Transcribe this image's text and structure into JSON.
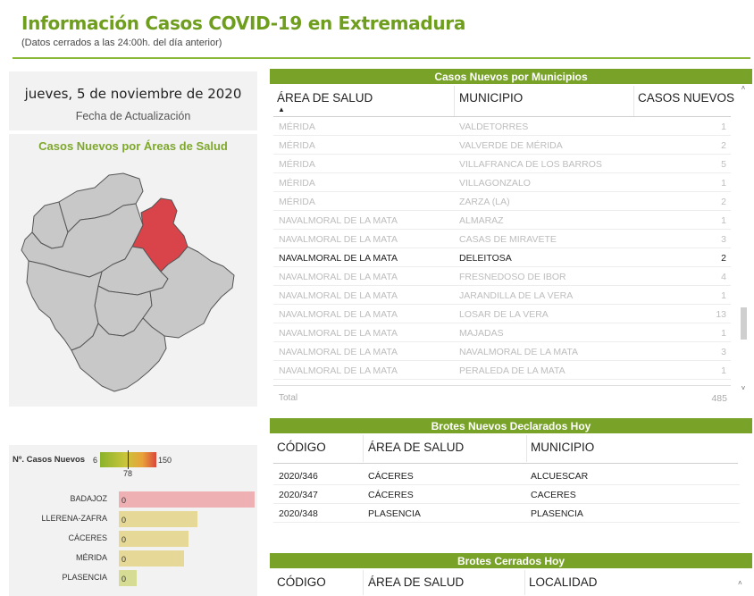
{
  "header": {
    "title": "Información Casos COVID-19 en Extremadura",
    "subtitle": "(Datos cerrados a las 24:00h. del día anterior)"
  },
  "date_card": {
    "date": "jueves, 5 de noviembre de 2020",
    "label": "Fecha de Actualización"
  },
  "map": {
    "title": "Casos Nuevos por Áreas de Salud",
    "highlight_color": "#d9434a",
    "base_color": "#c8c8c8"
  },
  "legend": {
    "label": "Nº. Casos Nuevos",
    "min": "6",
    "max": "150",
    "mid": "78"
  },
  "areas_bars": [
    {
      "name": "BADAJOZ",
      "value": "0",
      "fraction": 1.0,
      "color": "#efb0b4"
    },
    {
      "name": "LLERENA-ZAFRA",
      "value": "0",
      "fraction": 0.58,
      "color": "#e6d896"
    },
    {
      "name": "CÁCERES",
      "value": "0",
      "fraction": 0.51,
      "color": "#e6d896"
    },
    {
      "name": "MÉRIDA",
      "value": "0",
      "fraction": 0.48,
      "color": "#e6d896"
    },
    {
      "name": "PLASENCIA",
      "value": "0",
      "fraction": 0.13,
      "color": "#d6dc93"
    }
  ],
  "municipios": {
    "title": "Casos Nuevos por Municipios",
    "headers": [
      "ÁREA DE SALUD",
      "MUNICIPIO",
      "CASOS NUEVOS"
    ],
    "rows": [
      [
        "MÉRIDA",
        "VALDETORRES",
        "1"
      ],
      [
        "MÉRIDA",
        "VALVERDE DE MÉRIDA",
        "2"
      ],
      [
        "MÉRIDA",
        "VILLAFRANCA DE LOS BARROS",
        "5"
      ],
      [
        "MÉRIDA",
        "VILLAGONZALO",
        "1"
      ],
      [
        "MÉRIDA",
        "ZARZA (LA)",
        "2"
      ],
      [
        "NAVALMORAL DE LA MATA",
        "ALMARAZ",
        "1"
      ],
      [
        "NAVALMORAL DE LA MATA",
        "CASAS DE MIRAVETE",
        "3"
      ],
      [
        "NAVALMORAL DE LA MATA",
        "DELEITOSA",
        "2"
      ],
      [
        "NAVALMORAL DE LA MATA",
        "FRESNEDOSO DE IBOR",
        "4"
      ],
      [
        "NAVALMORAL DE LA MATA",
        "JARANDILLA DE LA VERA",
        "1"
      ],
      [
        "NAVALMORAL DE LA MATA",
        "LOSAR DE LA VERA",
        "13"
      ],
      [
        "NAVALMORAL DE LA MATA",
        "MAJADAS",
        "1"
      ],
      [
        "NAVALMORAL DE LA MATA",
        "NAVALMORAL DE LA MATA",
        "3"
      ],
      [
        "NAVALMORAL DE LA MATA",
        "PERALEDA DE LA MATA",
        "1"
      ]
    ],
    "active_row": 7,
    "total_label": "Total",
    "total_value": "485"
  },
  "brotes_nuevos": {
    "title": "Brotes Nuevos Declarados Hoy",
    "headers": [
      "CÓDIGO",
      "ÁREA DE SALUD",
      "MUNICIPIO"
    ],
    "rows": [
      [
        "2020/346",
        "CÁCERES",
        "ALCUESCAR"
      ],
      [
        "2020/347",
        "CÁCERES",
        "CACERES"
      ],
      [
        "2020/348",
        "PLASENCIA",
        "PLASENCIA"
      ]
    ]
  },
  "brotes_cerrados": {
    "title": "Brotes Cerrados Hoy",
    "headers": [
      "CÓDIGO",
      "ÁREA DE SALUD",
      "LOCALIDAD"
    ]
  }
}
